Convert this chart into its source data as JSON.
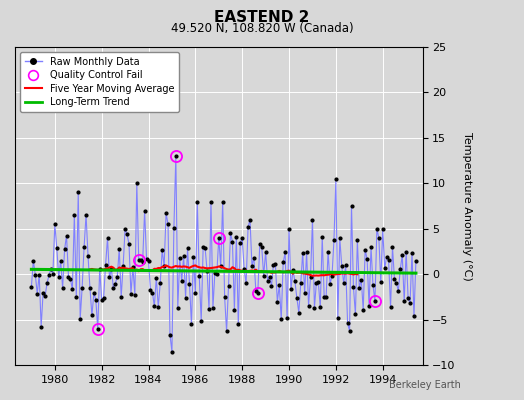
{
  "title": "EASTEND 2",
  "subtitle": "49.520 N, 108.820 W (Canada)",
  "ylabel": "Temperature Anomaly (°C)",
  "watermark": "Berkeley Earth",
  "xlim": [
    1978.3,
    1995.7
  ],
  "ylim": [
    -10,
    25
  ],
  "yticks": [
    -10,
    -5,
    0,
    5,
    10,
    15,
    20,
    25
  ],
  "xticks": [
    1980,
    1982,
    1984,
    1986,
    1988,
    1990,
    1992,
    1994
  ],
  "line_color": "#8080ff",
  "marker_color": "#000000",
  "ma_color": "#ff0000",
  "trend_color": "#00bb00",
  "qc_color": "#ff00ff",
  "background_color": "#d8d8d8",
  "grid_color": "#ffffff",
  "plot_bg_color": "#d8d8d8"
}
